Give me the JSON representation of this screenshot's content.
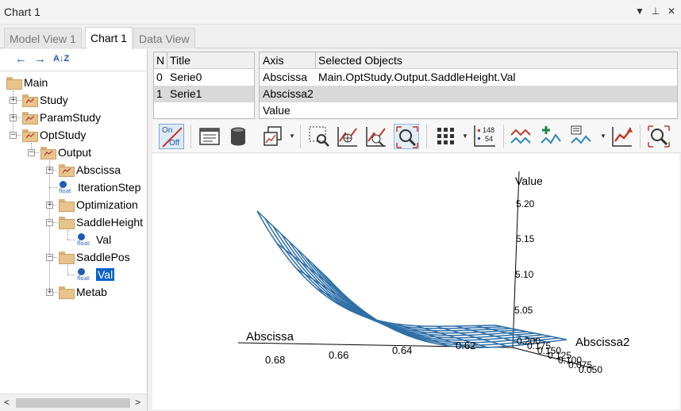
{
  "window": {
    "title": "Chart 1"
  },
  "window_buttons": {
    "menu": "▼",
    "pin": "⊥",
    "close": "✕"
  },
  "tabs": [
    {
      "label": "Model View 1"
    },
    {
      "label": "Chart 1"
    },
    {
      "label": "Data View"
    }
  ],
  "tree": {
    "toolbar": {
      "back": "←",
      "forward": "→",
      "sort": "A↓Z"
    },
    "nodes": {
      "main": "Main",
      "study": "Study",
      "paramstudy": "ParamStudy",
      "optstudy": "OptStudy",
      "output": "Output",
      "abscissa": "Abscissa",
      "iterationstep": "IterationStep",
      "optimization": "Optimization",
      "saddleheight": "SaddleHeight",
      "val1": "Val",
      "saddlepos": "SaddlePos",
      "val2": "Val",
      "metab": "Metab"
    },
    "float_label": "float",
    "scroll": {
      "left": "<",
      "right": ">"
    }
  },
  "series_table": {
    "headers": {
      "n": "N",
      "title": "Title"
    },
    "rows": [
      {
        "n": "0",
        "title": "Serie0"
      },
      {
        "n": "1",
        "title": "Serie1"
      }
    ]
  },
  "axis_table": {
    "headers": {
      "axis": "Axis",
      "objects": "Selected Objects"
    },
    "rows": [
      {
        "axis": "Abscissa",
        "objects": "Main.OptStudy.Output.SaddleHeight.Val"
      },
      {
        "axis": "Abscissa2",
        "objects": ""
      },
      {
        "axis": "Value",
        "objects": ""
      }
    ]
  },
  "toolbar": {
    "onoff_on": "On",
    "onoff_off": "Off",
    "counter_top": "148",
    "counter_bottom": "54"
  },
  "colors": {
    "surface": "#2e6fa6",
    "selection": "#0a64c8",
    "folder": "#e6c48c"
  },
  "chart_data": {
    "type": "surface3d",
    "axes": {
      "value": {
        "label": "Value",
        "ticks": [
          "5.20",
          "5.15",
          "5.10",
          "5.05"
        ]
      },
      "abscissa": {
        "label": "Abscissa",
        "ticks": [
          "0.68",
          "0.66",
          "0.64",
          "0.62"
        ]
      },
      "abscissa2": {
        "label": "Abscissa2",
        "ticks": [
          "0.050",
          "0.075",
          "0.100",
          "0.125",
          "0.150",
          "0.175",
          "0.200"
        ]
      }
    },
    "description_series": "Serie1"
  }
}
